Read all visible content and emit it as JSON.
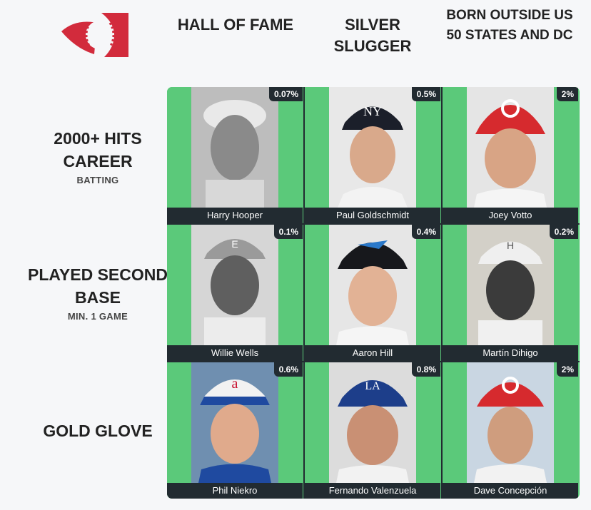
{
  "columns": [
    {
      "label": "HALL OF FAME"
    },
    {
      "label": "SILVER SLUGGER"
    },
    {
      "label": "BORN OUTSIDE US 50 STATES AND DC"
    }
  ],
  "rows": [
    {
      "label": "2000+ HITS CAREER",
      "sub": "BATTING"
    },
    {
      "label": "PLAYED SECOND BASE",
      "sub": "MIN. 1 GAME"
    },
    {
      "label": "GOLD GLOVE",
      "sub": ""
    }
  ],
  "cells": [
    [
      {
        "name": "Harry Hooper",
        "pct": "0.07%"
      },
      {
        "name": "Paul Goldschmidt",
        "pct": "0.5%"
      },
      {
        "name": "Joey Votto",
        "pct": "2%"
      }
    ],
    [
      {
        "name": "Willie Wells",
        "pct": "0.1%"
      },
      {
        "name": "Aaron Hill",
        "pct": "0.4%"
      },
      {
        "name": "Martín Dihigo",
        "pct": "0.2%"
      }
    ],
    [
      {
        "name": "Phil Niekro",
        "pct": "0.6%"
      },
      {
        "name": "Fernando Valenzuela",
        "pct": "0.8%"
      },
      {
        "name": "Dave Concepción",
        "pct": "2%"
      }
    ]
  ],
  "colors": {
    "correct": "#5bc97a",
    "dark": "#222b31",
    "logo": "#d22b3c"
  },
  "icons": {
    "logo": "baseball-logo-icon"
  }
}
